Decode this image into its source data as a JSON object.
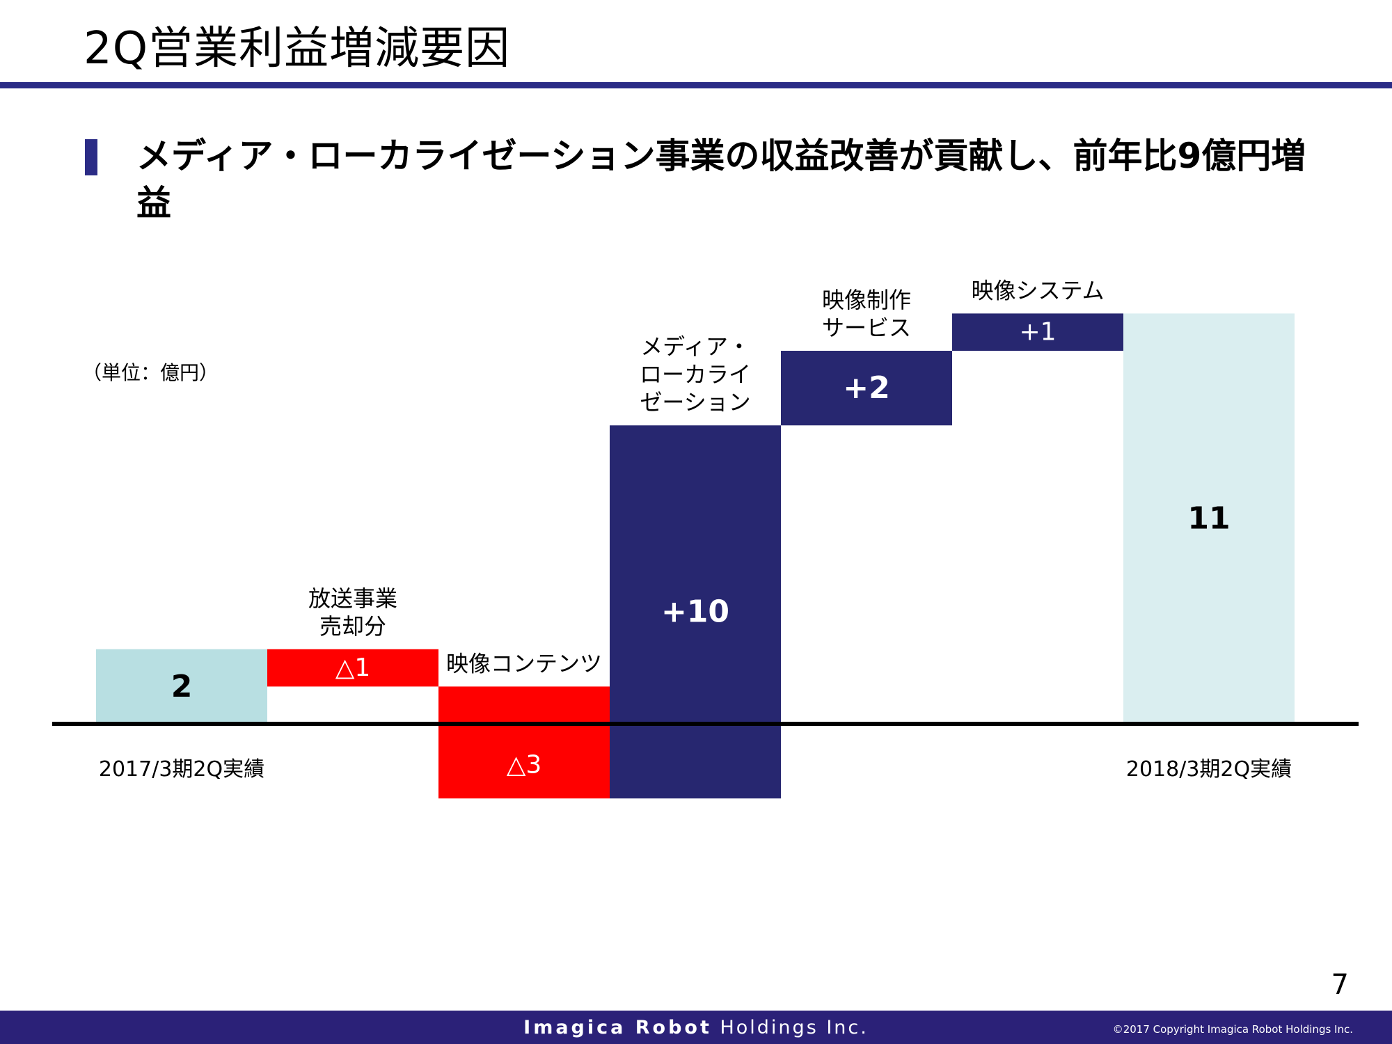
{
  "page": {
    "title": "2Q営業利益増減要因",
    "headline": "メディア・ローカライゼーション事業の収益改善が貢献し、前年比9億円増益",
    "unit_label": "（単位：億円）",
    "page_number": "7"
  },
  "footer": {
    "brand_bold": "Imagica Robot",
    "brand_rest": " Holdings Inc.",
    "copyright": "©2017  Copyright Imagica Robot Holdings Inc."
  },
  "colors": {
    "rule": "#2b2c86",
    "footer": "#2b2178",
    "start": "#b8dfe2",
    "end": "#daeef0",
    "increase": "#272770",
    "decrease": "#ff0000",
    "axis": "#000000"
  },
  "chart_data": {
    "type": "bar",
    "subtype": "waterfall",
    "y_unit": "億円",
    "ylim": [
      -2,
      11
    ],
    "categories": [
      "2017/3期2Q実績",
      "放送事業売却分",
      "映像コンテンツ",
      "メディア・ローカライゼーション",
      "映像制作サービス",
      "映像システム",
      "2018/3期2Q実績"
    ],
    "bars": [
      {
        "kind": "total",
        "start": 0,
        "end": 2,
        "value_label": "2",
        "category_lines": [
          "2017/3期2Q実績"
        ],
        "category_position": "below-axis"
      },
      {
        "kind": "decrease",
        "start": 2,
        "end": 1,
        "value_label": "△1",
        "category_lines": [
          "放送事業",
          "売却分"
        ],
        "category_position": "above"
      },
      {
        "kind": "decrease",
        "start": 1,
        "end": -2,
        "value_label": "△3",
        "category_lines": [
          "映像コンテンツ"
        ],
        "category_position": "above"
      },
      {
        "kind": "increase",
        "start": -2,
        "end": 8,
        "value_label": "+10",
        "category_lines": [
          "メディア・",
          "ローカライ",
          "ゼーション"
        ],
        "category_position": "above"
      },
      {
        "kind": "increase",
        "start": 8,
        "end": 10,
        "value_label": "+2",
        "category_lines": [
          "映像制作",
          "サービス"
        ],
        "category_position": "above"
      },
      {
        "kind": "increase",
        "start": 10,
        "end": 11,
        "value_label": "+1",
        "category_lines": [
          "映像システム"
        ],
        "category_position": "above"
      },
      {
        "kind": "total",
        "start": 0,
        "end": 11,
        "value_label": "11",
        "category_lines": [
          "2018/3期2Q実績"
        ],
        "category_position": "below-axis"
      }
    ]
  }
}
